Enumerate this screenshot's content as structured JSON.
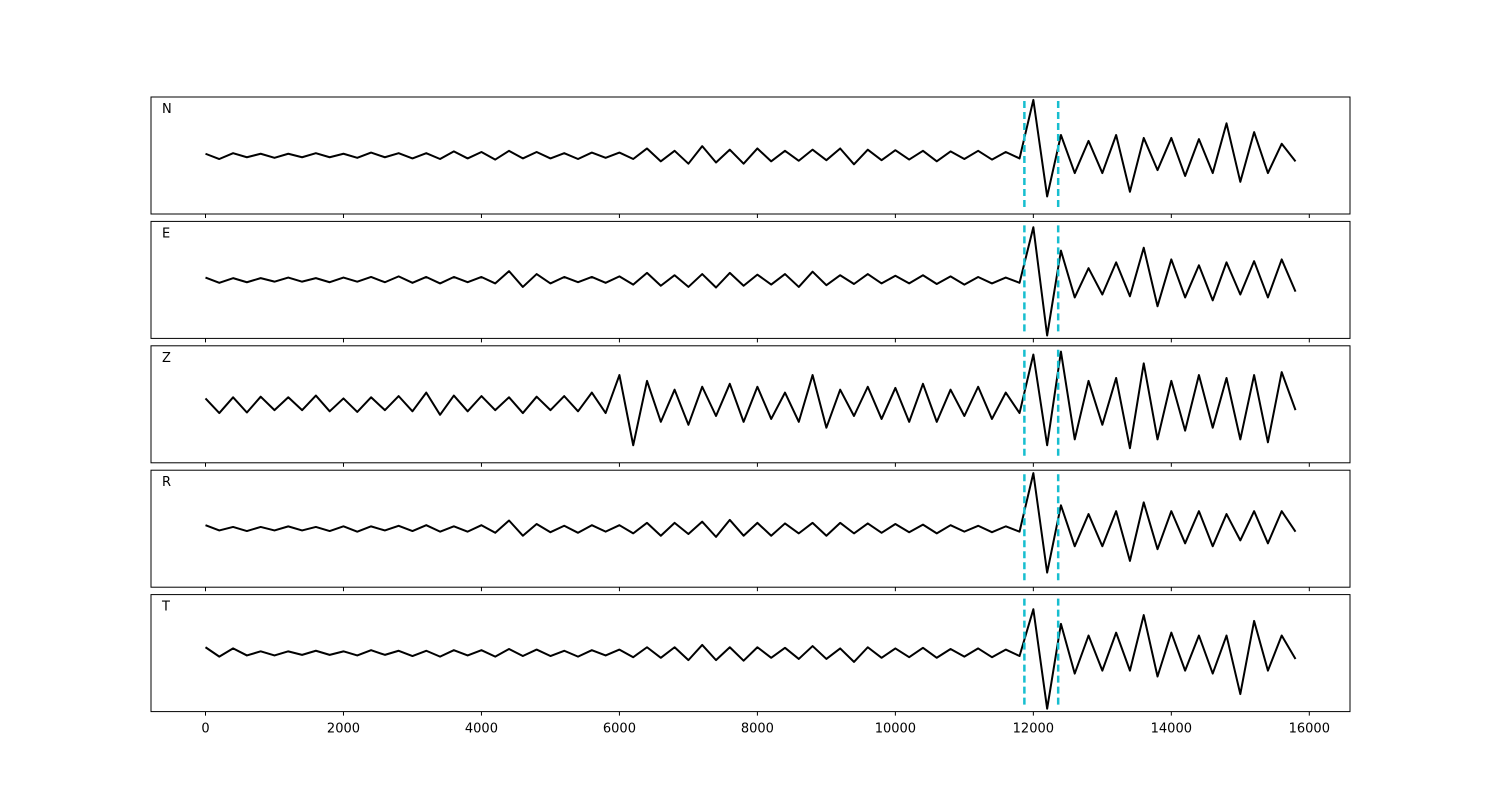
{
  "chart_data": {
    "type": "line",
    "x": [
      0,
      200,
      400,
      600,
      800,
      1000,
      1200,
      1400,
      1600,
      1800,
      2000,
      2200,
      2400,
      2600,
      2800,
      3000,
      3200,
      3400,
      3600,
      3800,
      4000,
      4200,
      4400,
      4600,
      4800,
      5000,
      5200,
      5400,
      5600,
      5800,
      6000,
      6200,
      6400,
      6600,
      6800,
      7000,
      7200,
      7400,
      7600,
      7800,
      8000,
      8200,
      8400,
      8600,
      8800,
      9000,
      9200,
      9400,
      9600,
      9800,
      10000,
      10200,
      10400,
      10600,
      10800,
      11000,
      11200,
      11400,
      11600,
      11800,
      12000,
      12200,
      12400,
      12600,
      12800,
      13000,
      13200,
      13400,
      13600,
      13800,
      14000,
      14200,
      14400,
      14600,
      14800,
      15000,
      15200,
      15400,
      15600,
      15800
    ],
    "xlim": [
      -790,
      16590
    ],
    "xticks": [
      0,
      2000,
      4000,
      6000,
      8000,
      10000,
      12000,
      14000,
      16000
    ],
    "ylim": [
      -1,
      1
    ],
    "vlines": [
      11870,
      12360
    ],
    "vline_color": "#17becf",
    "series": [
      {
        "name": "N",
        "color": "#000000",
        "values": [
          0.03,
          -0.06,
          0.04,
          -0.03,
          0.03,
          -0.04,
          0.03,
          -0.03,
          0.04,
          -0.03,
          0.03,
          -0.04,
          0.05,
          -0.03,
          0.04,
          -0.05,
          0.04,
          -0.06,
          0.07,
          -0.05,
          0.06,
          -0.07,
          0.08,
          -0.05,
          0.06,
          -0.05,
          0.04,
          -0.06,
          0.05,
          -0.04,
          0.05,
          -0.06,
          0.12,
          -0.1,
          0.08,
          -0.14,
          0.16,
          -0.12,
          0.1,
          -0.14,
          0.12,
          -0.1,
          0.08,
          -0.09,
          0.1,
          -0.08,
          0.12,
          -0.15,
          0.1,
          -0.08,
          0.09,
          -0.07,
          0.08,
          -0.1,
          0.07,
          -0.06,
          0.08,
          -0.07,
          0.06,
          -0.05,
          0.95,
          -0.7,
          0.35,
          -0.3,
          0.25,
          -0.3,
          0.35,
          -0.62,
          0.3,
          -0.25,
          0.3,
          -0.35,
          0.28,
          -0.3,
          0.55,
          -0.45,
          0.4,
          -0.3,
          0.2,
          -0.1
        ]
      },
      {
        "name": "E",
        "color": "#000000",
        "values": [
          0.04,
          -0.05,
          0.03,
          -0.04,
          0.03,
          -0.03,
          0.04,
          -0.03,
          0.03,
          -0.04,
          0.04,
          -0.03,
          0.05,
          -0.04,
          0.06,
          -0.05,
          0.05,
          -0.06,
          0.05,
          -0.04,
          0.05,
          -0.06,
          0.15,
          -0.12,
          0.1,
          -0.06,
          0.05,
          -0.04,
          0.05,
          -0.05,
          0.06,
          -0.08,
          0.12,
          -0.1,
          0.08,
          -0.12,
          0.1,
          -0.13,
          0.12,
          -0.1,
          0.09,
          -0.08,
          0.1,
          -0.12,
          0.14,
          -0.09,
          0.08,
          -0.07,
          0.1,
          -0.06,
          0.07,
          -0.06,
          0.08,
          -0.07,
          0.06,
          -0.08,
          0.05,
          -0.06,
          0.04,
          -0.05,
          0.9,
          -0.95,
          0.5,
          -0.3,
          0.2,
          -0.25,
          0.3,
          -0.28,
          0.55,
          -0.45,
          0.35,
          -0.3,
          0.25,
          -0.35,
          0.3,
          -0.25,
          0.32,
          -0.3,
          0.35,
          -0.2
        ]
      },
      {
        "name": "Z",
        "color": "#000000",
        "values": [
          0.1,
          -0.15,
          0.12,
          -0.14,
          0.13,
          -0.1,
          0.12,
          -0.1,
          0.15,
          -0.12,
          0.1,
          -0.13,
          0.12,
          -0.1,
          0.14,
          -0.12,
          0.2,
          -0.18,
          0.15,
          -0.12,
          0.14,
          -0.1,
          0.12,
          -0.15,
          0.13,
          -0.1,
          0.14,
          -0.12,
          0.2,
          -0.15,
          0.5,
          -0.7,
          0.4,
          -0.3,
          0.25,
          -0.35,
          0.3,
          -0.2,
          0.35,
          -0.3,
          0.3,
          -0.25,
          0.2,
          -0.3,
          0.5,
          -0.4,
          0.25,
          -0.2,
          0.3,
          -0.25,
          0.28,
          -0.3,
          0.35,
          -0.3,
          0.25,
          -0.2,
          0.3,
          -0.25,
          0.2,
          -0.15,
          0.85,
          -0.7,
          0.9,
          -0.6,
          0.4,
          -0.35,
          0.45,
          -0.75,
          0.7,
          -0.6,
          0.4,
          -0.45,
          0.5,
          -0.4,
          0.45,
          -0.6,
          0.5,
          -0.65,
          0.55,
          -0.1
        ]
      },
      {
        "name": "R",
        "color": "#000000",
        "values": [
          0.06,
          -0.03,
          0.03,
          -0.04,
          0.03,
          -0.03,
          0.04,
          -0.03,
          0.03,
          -0.04,
          0.04,
          -0.05,
          0.04,
          -0.03,
          0.05,
          -0.04,
          0.06,
          -0.05,
          0.04,
          -0.05,
          0.06,
          -0.07,
          0.14,
          -0.12,
          0.08,
          -0.06,
          0.05,
          -0.07,
          0.06,
          -0.05,
          0.06,
          -0.08,
          0.1,
          -0.12,
          0.1,
          -0.09,
          0.12,
          -0.14,
          0.15,
          -0.12,
          0.1,
          -0.12,
          0.09,
          -0.08,
          0.1,
          -0.12,
          0.1,
          -0.08,
          0.09,
          -0.07,
          0.08,
          -0.06,
          0.07,
          -0.08,
          0.06,
          -0.05,
          0.05,
          -0.06,
          0.04,
          -0.05,
          0.95,
          -0.75,
          0.4,
          -0.3,
          0.25,
          -0.3,
          0.3,
          -0.55,
          0.45,
          -0.35,
          0.3,
          -0.25,
          0.3,
          -0.3,
          0.25,
          -0.2,
          0.3,
          -0.25,
          0.3,
          -0.05
        ]
      },
      {
        "name": "T",
        "color": "#000000",
        "values": [
          0.1,
          -0.06,
          0.08,
          -0.04,
          0.03,
          -0.04,
          0.03,
          -0.03,
          0.04,
          -0.03,
          0.03,
          -0.04,
          0.05,
          -0.03,
          0.04,
          -0.05,
          0.04,
          -0.06,
          0.05,
          -0.04,
          0.05,
          -0.06,
          0.07,
          -0.05,
          0.06,
          -0.05,
          0.04,
          -0.06,
          0.05,
          -0.04,
          0.06,
          -0.07,
          0.1,
          -0.08,
          0.1,
          -0.12,
          0.14,
          -0.12,
          0.1,
          -0.13,
          0.1,
          -0.08,
          0.09,
          -0.1,
          0.12,
          -0.1,
          0.08,
          -0.15,
          0.1,
          -0.08,
          0.08,
          -0.07,
          0.09,
          -0.08,
          0.07,
          -0.06,
          0.08,
          -0.07,
          0.06,
          -0.05,
          0.75,
          -0.95,
          0.5,
          -0.35,
          0.3,
          -0.3,
          0.35,
          -0.3,
          0.65,
          -0.4,
          0.35,
          -0.3,
          0.3,
          -0.35,
          0.3,
          -0.7,
          0.55,
          -0.3,
          0.3,
          -0.1
        ]
      }
    ]
  }
}
